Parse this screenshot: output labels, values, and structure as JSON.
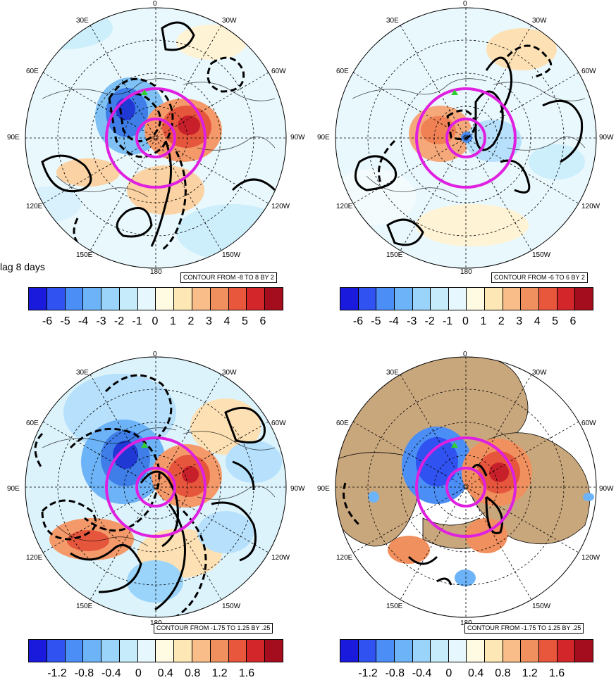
{
  "lag_label": "lag 8 days",
  "panels": [
    {
      "id": "top-left",
      "contour_note": "CONTOUR FROM -8 TO 8 BY 2",
      "lon_labels": {
        "top": "0",
        "top_left": "30E",
        "top_right": "30W",
        "left_upper": "60E",
        "right_upper": "60W",
        "left": "90E",
        "right": "90W",
        "left_lower": "120E",
        "right_lower": "120W",
        "bottom_left": "150E",
        "bottom_right": "150W",
        "bottom": "180"
      },
      "colorbar": {
        "colors": [
          "#1a1adc",
          "#2f52f0",
          "#4b8ef5",
          "#6db3f7",
          "#9ad4fa",
          "#c6ecfc",
          "#e6f8fd",
          "#fffbe3",
          "#fde7b5",
          "#f8bd88",
          "#f1905f",
          "#e8563c",
          "#d3262b",
          "#a40d1d"
        ],
        "ticks": [
          "-6",
          "-5",
          "-4",
          "-3",
          "-2",
          "-1",
          "0",
          "1",
          "2",
          "3",
          "4",
          "5",
          "6"
        ]
      }
    },
    {
      "id": "top-right",
      "contour_note": "CONTOUR FROM -6 TO 6 BY 2",
      "lon_labels": {
        "top": "0",
        "top_left": "30E",
        "top_right": "30W",
        "left_upper": "60E",
        "right_upper": "60W",
        "left": "90E",
        "right": "90W",
        "left_lower": "120E",
        "right_lower": "120W",
        "bottom_left": "150E",
        "bottom_right": "150W",
        "bottom": "180"
      },
      "colorbar": {
        "colors": [
          "#1a1adc",
          "#2f52f0",
          "#4b8ef5",
          "#6db3f7",
          "#9ad4fa",
          "#c6ecfc",
          "#e6f8fd",
          "#fffbe3",
          "#fde7b5",
          "#f8bd88",
          "#f1905f",
          "#e8563c",
          "#d3262b",
          "#a40d1d"
        ],
        "ticks": [
          "-6",
          "-5",
          "-4",
          "-3",
          "-2",
          "-1",
          "0",
          "1",
          "2",
          "3",
          "4",
          "5",
          "6"
        ]
      }
    },
    {
      "id": "bottom-left",
      "contour_note": "CONTOUR FROM -1.75 TO 1.25 BY .25",
      "lon_labels": {
        "top": "0",
        "top_left": "30E",
        "top_right": "30W",
        "left_upper": "60E",
        "right_upper": "60W",
        "left": "90E",
        "right": "90W",
        "left_lower": "120E",
        "right_lower": "120W",
        "bottom_left": "150E",
        "bottom_right": "150W",
        "bottom": "180"
      },
      "colorbar": {
        "colors": [
          "#1a1adc",
          "#2f52f0",
          "#4b8ef5",
          "#6db3f7",
          "#9ad4fa",
          "#c6ecfc",
          "#e6f8fd",
          "#fffbe3",
          "#fde7b5",
          "#f8bd88",
          "#f1905f",
          "#e8563c",
          "#d3262b",
          "#a40d1d"
        ],
        "ticks": [
          "-1.2",
          "-0.8",
          "-0.4",
          "0",
          "0.4",
          "0.8",
          "1.2",
          "1.6"
        ]
      }
    },
    {
      "id": "bottom-right",
      "contour_note": "CONTOUR FROM -1.75 TO 1.25 BY .25",
      "lon_labels": {
        "top": "0",
        "top_left": "30E",
        "top_right": "30W",
        "left_upper": "60E",
        "right_upper": "60W",
        "left": "90E",
        "right": "90W",
        "left_lower": "120E",
        "right_lower": "120W",
        "bottom_left": "150E",
        "bottom_right": "150W",
        "bottom": "180"
      },
      "colorbar": {
        "colors": [
          "#1a1adc",
          "#2f52f0",
          "#4b8ef5",
          "#6db3f7",
          "#9ad4fa",
          "#c6ecfc",
          "#e6f8fd",
          "#fffbe3",
          "#fde7b5",
          "#f8bd88",
          "#f1905f",
          "#e8563c",
          "#d3262b",
          "#a40d1d"
        ],
        "ticks": [
          "-1.2",
          "-0.8",
          "-0.4",
          "0",
          "0.4",
          "0.8",
          "1.2",
          "1.6"
        ]
      }
    }
  ]
}
